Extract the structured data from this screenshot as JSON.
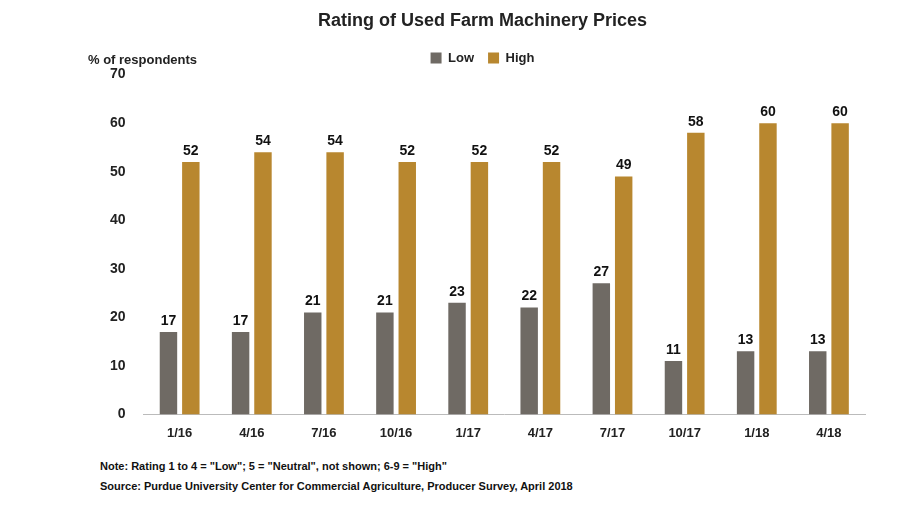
{
  "chart_data": {
    "type": "bar",
    "title": "Rating of Used Farm Machinery Prices",
    "y_label": "% of respondents",
    "categories": [
      "1/16",
      "4/16",
      "7/16",
      "10/16",
      "1/17",
      "4/17",
      "7/17",
      "10/17",
      "1/18",
      "4/18"
    ],
    "series": [
      {
        "name": "Low",
        "color": "#6f6a64",
        "values": [
          17,
          17,
          21,
          21,
          23,
          22,
          27,
          11,
          13,
          13
        ]
      },
      {
        "name": "High",
        "color": "#b8872f",
        "values": [
          52,
          54,
          54,
          52,
          52,
          52,
          49,
          58,
          60,
          60
        ]
      }
    ],
    "ylim": [
      0,
      70
    ],
    "yticks": [
      0,
      10,
      20,
      30,
      40,
      50,
      60,
      70
    ],
    "grid": false,
    "legend": "top",
    "data_labels": true,
    "notes": [
      "Note: Rating 1 to 4 = \"Low\"; 5 = \"Neutral\", not shown; 6-9 = \"High\"",
      "Source: Purdue University Center for Commercial Agriculture, Producer Survey, April 2018"
    ]
  }
}
